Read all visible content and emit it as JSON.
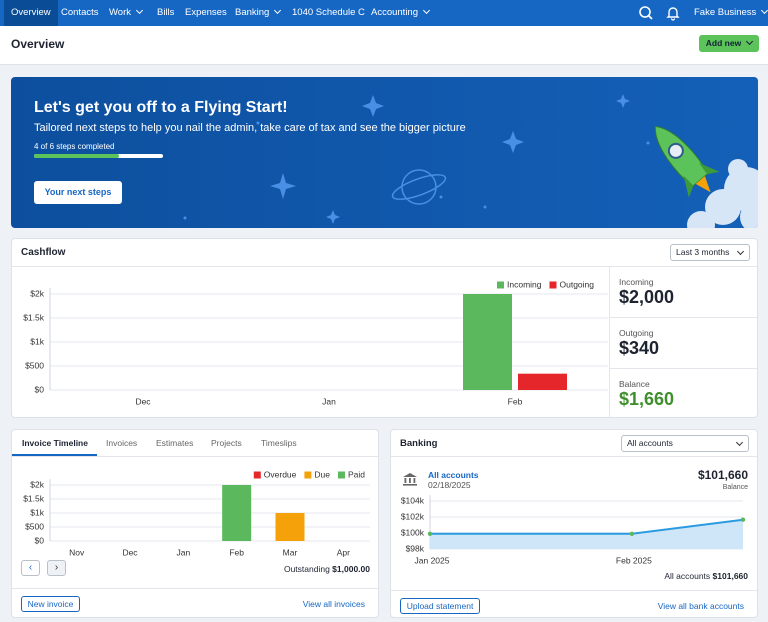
{
  "nav": {
    "items": [
      "Overview",
      "Contacts",
      "Work",
      "Bills",
      "Expenses",
      "Banking",
      "1040 Schedule C",
      "Accounting"
    ],
    "business": "Fake Business"
  },
  "header": {
    "title": "Overview",
    "add_button": "Add new"
  },
  "banner": {
    "title": "Let's get you off to a Flying Start!",
    "subtitle": "Tailored next steps to help you nail the admin, take care of tax and see the bigger picture",
    "progress": "4 of 6 steps completed",
    "button": "Your next steps"
  },
  "cashflow": {
    "title": "Cashflow",
    "period": "Last 3 months",
    "chart": {
      "type": "bar",
      "categories": [
        "Dec",
        "Jan",
        "Feb"
      ],
      "series": [
        {
          "name": "Incoming",
          "color": "#5cb85c",
          "values": [
            0,
            0,
            2000
          ]
        },
        {
          "name": "Outgoing",
          "color": "#e5262a",
          "values": [
            0,
            0,
            340
          ]
        }
      ],
      "ylim": [
        0,
        2000
      ],
      "yticks": [
        {
          "value": 0,
          "label": "$0"
        },
        {
          "value": 500,
          "label": "$500"
        },
        {
          "value": 1000,
          "label": "$1k"
        },
        {
          "value": 1500,
          "label": "$1.5k"
        },
        {
          "value": 2000,
          "label": "$2k"
        }
      ],
      "grid": true
    },
    "summary": [
      {
        "label": "Incoming",
        "amount": "$2,000"
      },
      {
        "label": "Outgoing",
        "amount": "$340"
      },
      {
        "label": "Balance",
        "amount": "$1,660"
      }
    ]
  },
  "invoices": {
    "tabs": [
      "Invoice Timeline",
      "Invoices",
      "Estimates",
      "Projects",
      "Timeslips"
    ],
    "chart": {
      "type": "bar",
      "stacked": true,
      "categories": [
        "Nov",
        "Dec",
        "Jan",
        "Feb",
        "Mar",
        "Apr"
      ],
      "series": [
        {
          "name": "Overdue",
          "color": "#e5262a",
          "values": [
            0,
            0,
            0,
            0,
            0,
            0
          ]
        },
        {
          "name": "Due",
          "color": "#f5a20a",
          "values": [
            0,
            0,
            0,
            0,
            1000,
            0
          ]
        },
        {
          "name": "Paid",
          "color": "#5cb85c",
          "values": [
            0,
            0,
            0,
            2000,
            0,
            0
          ]
        }
      ],
      "ylim": [
        0,
        2000
      ],
      "yticks": [
        {
          "value": 0,
          "label": "$0"
        },
        {
          "value": 500,
          "label": "$500"
        },
        {
          "value": 1000,
          "label": "$1k"
        },
        {
          "value": 1500,
          "label": "$1.5k"
        },
        {
          "value": 2000,
          "label": "$2k"
        }
      ],
      "grid": true
    },
    "outstanding_label": "Outstanding",
    "outstanding_amount": "$1,000.00",
    "new_button": "New invoice",
    "view_all": "View all invoices"
  },
  "banking": {
    "title": "Banking",
    "account_filter": "All accounts",
    "account_name": "All accounts",
    "date": "02/18/2025",
    "balance": "$101,660",
    "balance_label": "Balance",
    "chart": {
      "type": "line",
      "x": [
        "Jan 2025",
        "Feb 2025",
        null
      ],
      "values": [
        99900,
        99900,
        101660
      ],
      "color": "#2a9be0",
      "ylim": [
        98000,
        104000
      ],
      "yticks": [
        {
          "value": 98000,
          "label": "$98k"
        },
        {
          "value": 100000,
          "label": "$100k"
        },
        {
          "value": 102000,
          "label": "$102k"
        },
        {
          "value": 104000,
          "label": "$104k"
        }
      ],
      "grid": true
    },
    "footer_label": "All accounts",
    "footer_amount": "$101,660",
    "upload_button": "Upload statement",
    "view_all": "View all bank accounts"
  }
}
